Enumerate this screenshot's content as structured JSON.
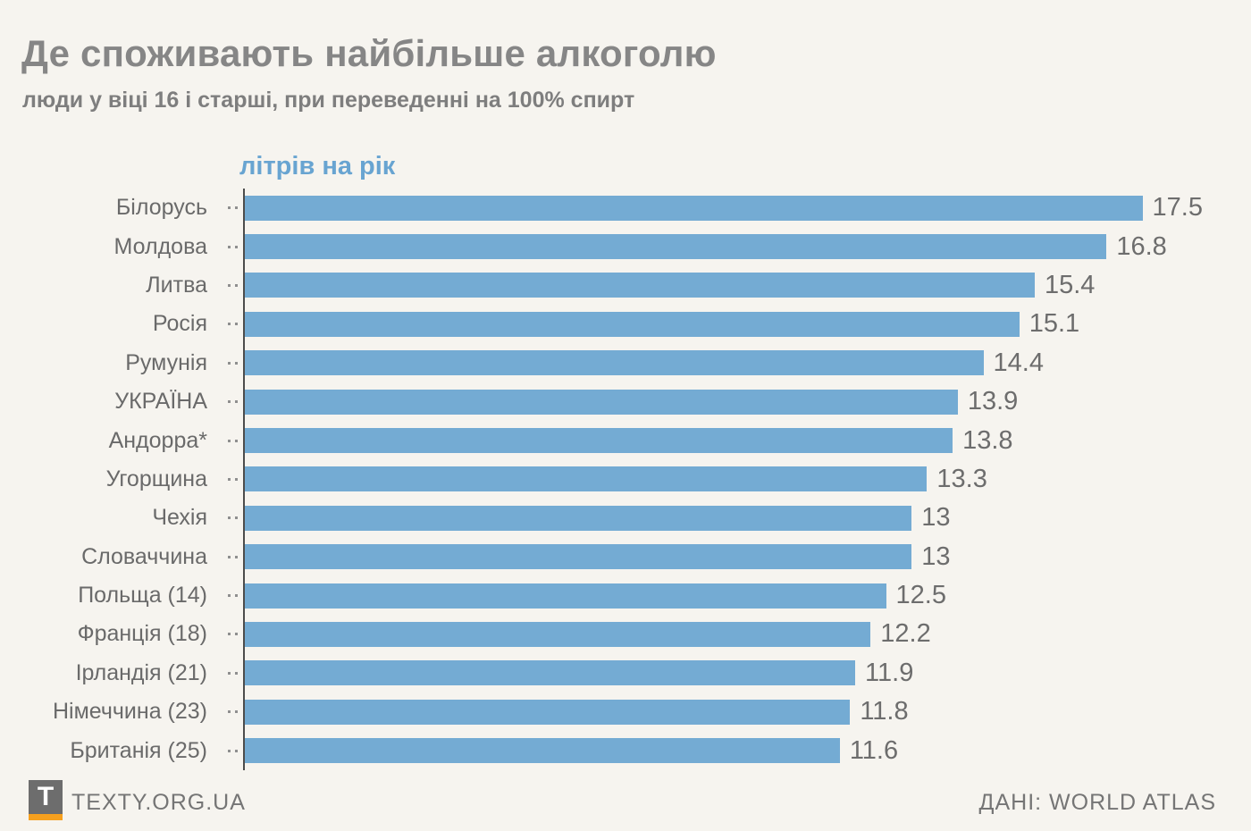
{
  "chart_data": {
    "type": "bar",
    "orientation": "horizontal",
    "title": "Де споживають найбільше алкоголю",
    "subtitle": "люди у віці 16 і старші, при переведенні на 100% спирт",
    "xlabel": "літрів на рік",
    "categories": [
      "Білорусь",
      "Молдова",
      "Литва",
      "Росія",
      "Румунія",
      "УКРАЇНА",
      "Андорра*",
      "Угорщина",
      "Чехія",
      "Словаччина",
      "Польща (14)",
      "Франція (18)",
      "Ірландія (21)",
      "Німеччина (23)",
      "Британія (25)"
    ],
    "values": [
      17.5,
      16.8,
      15.4,
      15.1,
      14.4,
      13.9,
      13.8,
      13.3,
      13,
      13,
      12.5,
      12.2,
      11.9,
      11.8,
      11.6
    ],
    "xlim": [
      0,
      17.5
    ],
    "grid": false,
    "legend": false,
    "value_labels": true,
    "bar_color": "#74ABD3"
  },
  "footer": {
    "logo_letter": "T",
    "site": "TEXTY.ORG.UA",
    "source": "ДАНІ: WORLD ATLAS"
  },
  "colors": {
    "background": "#F6F4EF",
    "bar": "#74ABD3",
    "axis_label_blue": "#68A4D1",
    "title_gray": "#868686",
    "text_gray": "#6D6D6D",
    "axis_line": "#4C4C4C",
    "logo_gray": "#6D6D6D",
    "logo_orange": "#F6A01E"
  }
}
